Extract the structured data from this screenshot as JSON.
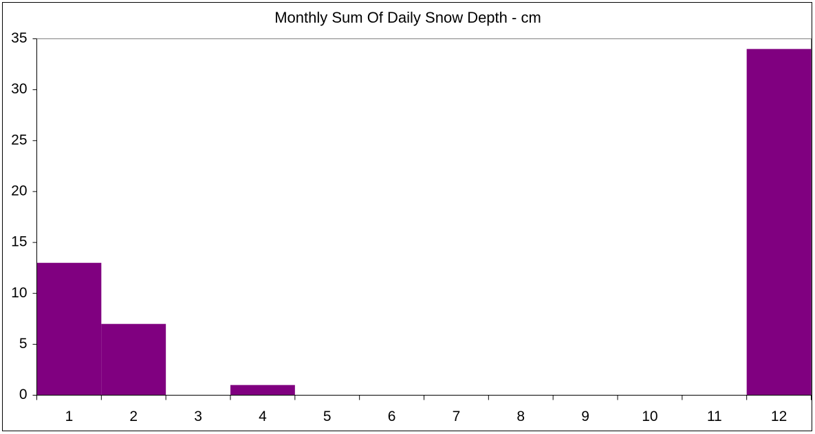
{
  "chart_data": {
    "type": "bar",
    "title": "Monthly Sum Of Daily Snow Depth - cm",
    "categories": [
      "1",
      "2",
      "3",
      "4",
      "5",
      "6",
      "7",
      "8",
      "9",
      "10",
      "11",
      "12"
    ],
    "values": [
      13,
      7,
      0,
      1,
      0,
      0,
      0,
      0,
      0,
      0,
      0,
      34
    ],
    "color": "#800080",
    "ylim": [
      0,
      35
    ],
    "yticks": [
      0,
      5,
      10,
      15,
      20,
      25,
      30,
      35
    ],
    "grid": false
  }
}
